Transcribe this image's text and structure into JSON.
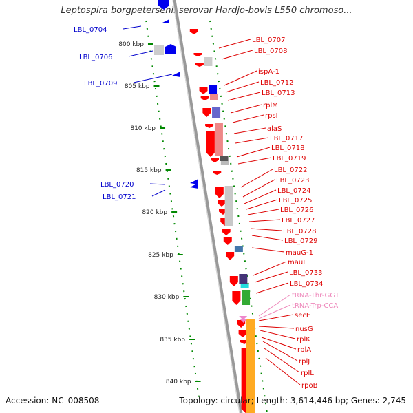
{
  "title": "Leptospira borgpetersenii serovar Hardjo-bovis L550 chromoso...",
  "accession": "Accession: NC_008508",
  "summary": "Topology: circular; Length: 3,614,446 bp; Genes: 2,745",
  "colors": {
    "forward_gene": "#ee0000",
    "reverse_gene": "#0000dd",
    "trna": "#ee88cc",
    "scale": "#008800",
    "backbone": "#999999"
  },
  "scale_ticks": [
    "800 kbp",
    "805 kbp",
    "810 kbp",
    "815 kbp",
    "820 kbp",
    "825 kbp",
    "830 kbp",
    "835 kbp",
    "840 kbp"
  ],
  "reverse_labels": [
    "LBL_0704",
    "LBL_0706",
    "LBL_0709",
    "LBL_0720",
    "LBL_0721"
  ],
  "forward_labels": [
    "LBL_0707",
    "LBL_0708",
    "ispA-1",
    "LBL_0712",
    "LBL_0713",
    "rplM",
    "rpsI",
    "alaS",
    "LBL_0717",
    "LBL_0718",
    "LBL_0719",
    "LBL_0722",
    "LBL_0723",
    "LBL_0724",
    "LBL_0725",
    "LBL_0726",
    "LBL_0727",
    "LBL_0728",
    "LBL_0729",
    "mauG-1",
    "mauL",
    "LBL_0733",
    "LBL_0734",
    "tRNA-Thr-GGT",
    "tRNA-Trp-CCA",
    "secE",
    "nusG",
    "rplK",
    "rplA",
    "rplJ",
    "rplL",
    "rpoB"
  ]
}
